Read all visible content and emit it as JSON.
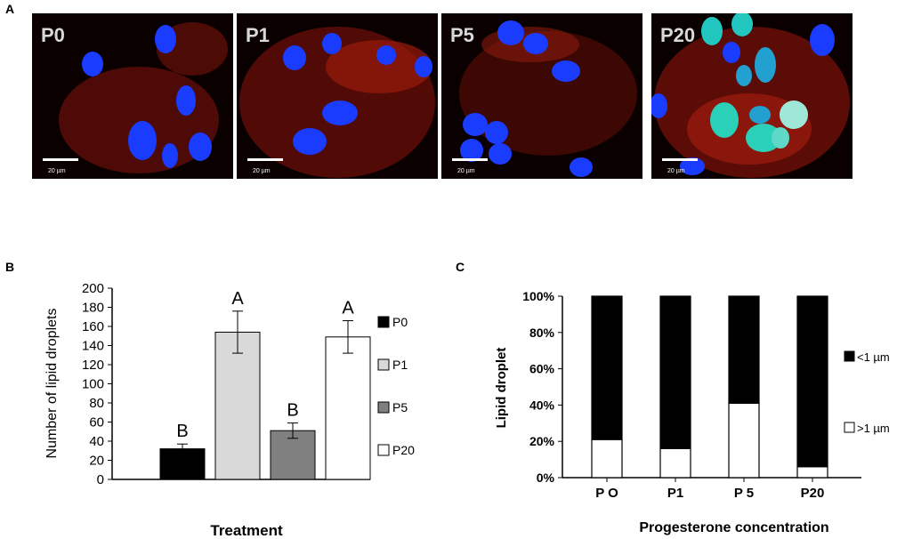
{
  "panel_labels": {
    "a": "A",
    "b": "B",
    "c": "C"
  },
  "micrographs": [
    {
      "label": "P0",
      "scale": "20 µm",
      "nucleus_color": "#1a3cff",
      "cyto_color": "#b01a10"
    },
    {
      "label": "P1",
      "scale": "20 µm",
      "nucleus_color": "#1a3cff",
      "cyto_color": "#b01a10"
    },
    {
      "label": "P5",
      "scale": "20 µm",
      "nucleus_color": "#1a3cff",
      "cyto_color": "#b01a10"
    },
    {
      "label": "P20",
      "scale": "20 µm",
      "nucleus_color": "#22c8c0",
      "cyto_color": "#b01a10"
    }
  ],
  "chart_data": [
    {
      "type": "bar",
      "categories": [
        "P0",
        "P1",
        "P5",
        "P20"
      ],
      "values": [
        32,
        154,
        51,
        149
      ],
      "errors": [
        5,
        22,
        8,
        17
      ],
      "significance": [
        "B",
        "A",
        "B",
        "A"
      ],
      "colors": [
        "#000000",
        "#d9d9d9",
        "#808080",
        "#ffffff"
      ],
      "legend": [
        "P0",
        "P1",
        "P5",
        "P20"
      ],
      "legend_position": "right",
      "xlabel": "Treatment",
      "ylabel": "Number of lipid droplets",
      "ylim": [
        0,
        200
      ],
      "yticks": [
        "0",
        "20",
        "40",
        "60",
        "80",
        "100",
        "120",
        "140",
        "160",
        "180",
        "200"
      ]
    },
    {
      "type": "bar",
      "stacked": true,
      "percent": true,
      "categories": [
        "P O",
        "P1",
        "P 5",
        "P20"
      ],
      "series": [
        {
          "name": ">1 µm",
          "values": [
            21,
            16,
            41,
            6
          ],
          "color": "#ffffff"
        },
        {
          "name": "<1 µm",
          "values": [
            79,
            84,
            59,
            94
          ],
          "color": "#000000"
        }
      ],
      "legend": [
        "<1 µm",
        ">1 µm"
      ],
      "legend_position": "right",
      "xlabel": "Progesterone concentration",
      "ylabel": "Lipid droplet",
      "ylim": [
        0,
        100
      ],
      "yticks": [
        "0%",
        "20%",
        "40%",
        "60%",
        "80%",
        "100%"
      ]
    }
  ]
}
